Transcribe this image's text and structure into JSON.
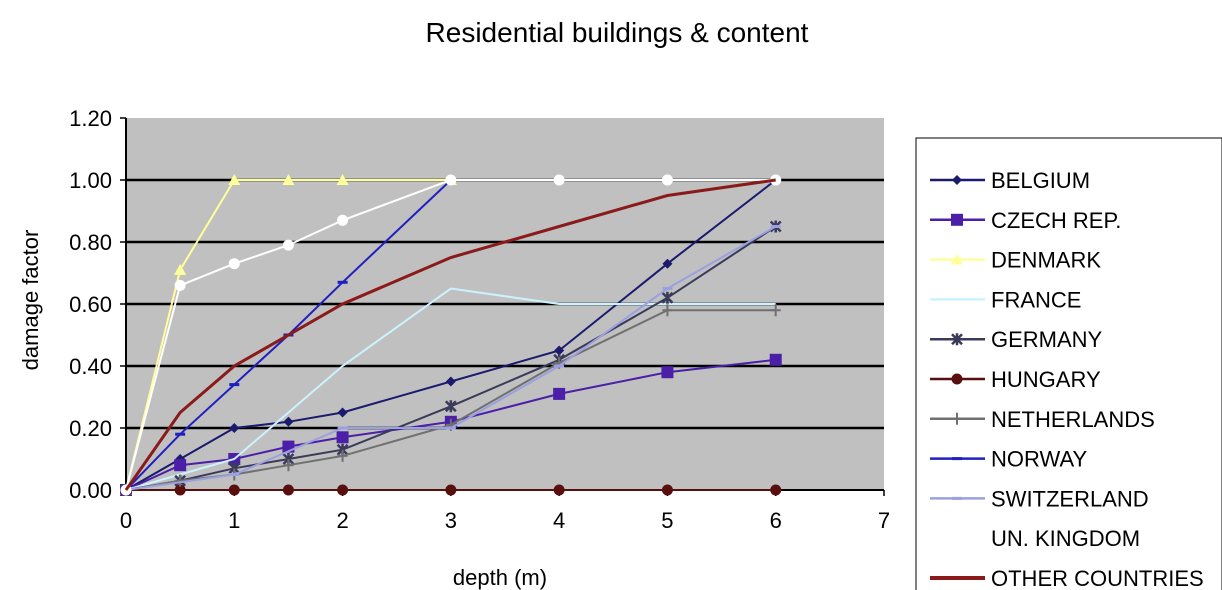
{
  "chart_data": {
    "type": "line",
    "title": "Residential buildings & content",
    "xlabel": "depth (m)",
    "ylabel": "damage factor",
    "xlim": [
      0,
      7
    ],
    "ylim": [
      0,
      1.2
    ],
    "x_ticks": [
      "0",
      "1",
      "2",
      "3",
      "4",
      "5",
      "6",
      "7"
    ],
    "y_ticks": [
      "0.00",
      "0.20",
      "0.40",
      "0.60",
      "0.80",
      "1.00",
      "1.20"
    ],
    "grid": "horizontal",
    "legend_position": "right",
    "plot_background": "#c0c0c0",
    "series": [
      {
        "name": "BELGIUM",
        "color": "#1a1a6e",
        "marker": "diamond",
        "points": [
          [
            0,
            0
          ],
          [
            0.5,
            0.1
          ],
          [
            1,
            0.2
          ],
          [
            1.5,
            0.22
          ],
          [
            2,
            0.25
          ],
          [
            3,
            0.35
          ],
          [
            4,
            0.45
          ],
          [
            5,
            0.73
          ],
          [
            6,
            1.0
          ]
        ]
      },
      {
        "name": "CZECH REP.",
        "color": "#4b1fa8",
        "marker": "square",
        "points": [
          [
            0,
            0
          ],
          [
            0.5,
            0.08
          ],
          [
            1,
            0.1
          ],
          [
            1.5,
            0.14
          ],
          [
            2,
            0.17
          ],
          [
            3,
            0.22
          ],
          [
            4,
            0.31
          ],
          [
            5,
            0.38
          ],
          [
            6,
            0.42
          ]
        ]
      },
      {
        "name": "DENMARK",
        "color": "#ffff99",
        "marker": "triangle",
        "points": [
          [
            0,
            0
          ],
          [
            0.5,
            0.71
          ],
          [
            1,
            1.0
          ],
          [
            1.5,
            1.0
          ],
          [
            2,
            1.0
          ],
          [
            3,
            1.0
          ]
        ]
      },
      {
        "name": "FRANCE",
        "color": "#ccf2ff",
        "marker": "none",
        "points": [
          [
            0,
            0
          ],
          [
            1,
            0.1
          ],
          [
            2,
            0.4
          ],
          [
            3,
            0.65
          ],
          [
            4,
            0.6
          ],
          [
            5,
            0.6
          ],
          [
            6,
            0.6
          ]
        ]
      },
      {
        "name": "GERMANY",
        "color": "#3a3a5a",
        "marker": "star",
        "points": [
          [
            0,
            0
          ],
          [
            0.5,
            0.03
          ],
          [
            1,
            0.07
          ],
          [
            1.5,
            0.1
          ],
          [
            2,
            0.13
          ],
          [
            3,
            0.27
          ],
          [
            4,
            0.42
          ],
          [
            5,
            0.62
          ],
          [
            6,
            0.85
          ]
        ]
      },
      {
        "name": "HUNGARY",
        "color": "#5a0f0f",
        "marker": "circle",
        "points": [
          [
            0,
            0
          ],
          [
            0.5,
            0
          ],
          [
            1,
            0
          ],
          [
            1.5,
            0
          ],
          [
            2,
            0
          ],
          [
            3,
            0
          ],
          [
            4,
            0
          ],
          [
            5,
            0
          ],
          [
            6,
            0
          ]
        ]
      },
      {
        "name": "NETHERLANDS",
        "color": "#707070",
        "marker": "plus",
        "points": [
          [
            0,
            0
          ],
          [
            0.5,
            0.03
          ],
          [
            1,
            0.05
          ],
          [
            1.5,
            0.08
          ],
          [
            2,
            0.11
          ],
          [
            3,
            0.21
          ],
          [
            4,
            0.41
          ],
          [
            5,
            0.58
          ],
          [
            6,
            0.58
          ]
        ]
      },
      {
        "name": "NORWAY",
        "color": "#2020c0",
        "marker": "dash",
        "points": [
          [
            0,
            0
          ],
          [
            0.5,
            0.18
          ],
          [
            1,
            0.34
          ],
          [
            1.5,
            0.5
          ],
          [
            2,
            0.67
          ],
          [
            3,
            1.0
          ]
        ]
      },
      {
        "name": "SWITZERLAND",
        "color": "#9aa0e0",
        "marker": "dash",
        "points": [
          [
            0,
            0
          ],
          [
            1,
            0.05
          ],
          [
            2,
            0.2
          ],
          [
            3,
            0.2
          ],
          [
            4,
            0.4
          ],
          [
            5,
            0.65
          ],
          [
            6,
            0.85
          ]
        ]
      },
      {
        "name": "UN. KINGDOM",
        "color": "#ffffff",
        "marker": "circle",
        "points": [
          [
            0,
            0
          ],
          [
            0.5,
            0.66
          ],
          [
            1,
            0.73
          ],
          [
            1.5,
            0.79
          ],
          [
            2,
            0.87
          ],
          [
            3,
            1.0
          ],
          [
            4,
            1.0
          ],
          [
            5,
            1.0
          ],
          [
            6,
            1.0
          ]
        ]
      },
      {
        "name": "OTHER COUNTRIES",
        "color": "#8b1a1a",
        "marker": "none",
        "points": [
          [
            0,
            0
          ],
          [
            0.5,
            0.25
          ],
          [
            1,
            0.4
          ],
          [
            2,
            0.6
          ],
          [
            3,
            0.75
          ],
          [
            4,
            0.85
          ],
          [
            5,
            0.95
          ],
          [
            6,
            1.0
          ]
        ]
      }
    ]
  }
}
